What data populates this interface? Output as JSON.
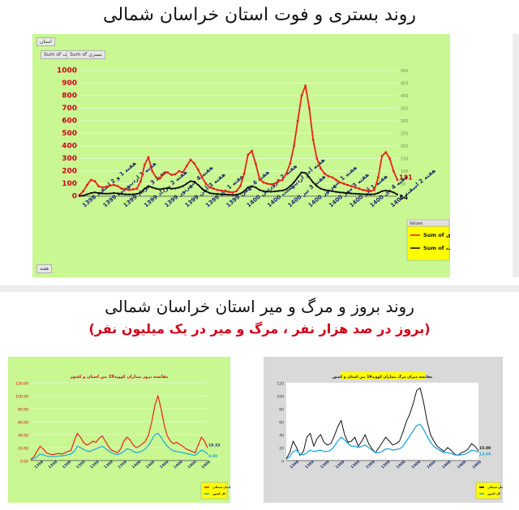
{
  "titles": {
    "top": "روند بستری و فوت استان خراسان شمالی",
    "bottom": "روند بروز و مرگ و میر استان خراسان شمالی",
    "bottom_sub": "(بروز در صد هزار نفر ، مرگ و میر در یک میلیون نفر)"
  },
  "pivot_buttons": {
    "filter": "استان",
    "sum_death": "Sum of فوت",
    "sum_hosp": "Sum of بستری",
    "week": "هفته",
    "values": "Values"
  },
  "colors": {
    "panel_green": "#c9f792",
    "panel_gray": "#d9d9d9",
    "hosp_red": "#e8231a",
    "death_black": "#111111",
    "legend_yellow": "#ffff00",
    "incidence_line": "#1f3b8c",
    "death_rate_line": "#1ea7e0"
  },
  "chart_data": [
    {
      "type": "line",
      "title": "",
      "ylabel": "",
      "ylim": [
        0,
        1000
      ],
      "y2lim": [
        0,
        500
      ],
      "yticks": [
        0,
        100,
        200,
        300,
        400,
        500,
        600,
        700,
        800,
        900,
        1000
      ],
      "y2ticks": [
        0,
        50,
        100,
        150,
        200,
        250,
        300,
        350,
        400,
        450,
        500
      ],
      "x_tick_labels": [
        "هفته 1 و 2 اسفند 1398",
        "هفته 1 اردیبهشت 1399",
        "هفته 3 خرداد 1399",
        "هفته 2 مرداد 1399",
        "هفته 4 شهریور 1399",
        "هفته 3 آبان 1399",
        "هفته 1 دی 1399",
        "هفته 4 بهمن 1399",
        "هفته 2 فروردین 1400",
        "هفته آخر اردیبهشت 1400",
        "هفته 3 تیر 1400",
        "هفته 1 شهریور 1400",
        "هفته 3 مهر 1400",
        "هفته 1 آذر 1400",
        "هفته 4 دی 1400",
        "هفته 2 اسفند 1400"
      ],
      "grid": true,
      "legend": "bottom-right",
      "end_labels": [
        "131",
        "14"
      ],
      "series": [
        {
          "name": "Sum of بستری",
          "values": [
            10,
            40,
            90,
            130,
            120,
            80,
            70,
            75,
            85,
            90,
            80,
            60,
            55,
            50,
            55,
            60,
            120,
            250,
            310,
            200,
            150,
            140,
            180,
            190,
            170,
            175,
            200,
            190,
            240,
            290,
            260,
            210,
            150,
            100,
            70,
            60,
            50,
            45,
            40,
            35,
            30,
            40,
            80,
            180,
            330,
            360,
            260,
            140,
            110,
            100,
            95,
            100,
            120,
            130,
            180,
            260,
            400,
            600,
            800,
            880,
            700,
            450,
            300,
            220,
            180,
            160,
            150,
            130,
            110,
            100,
            90,
            80,
            70,
            60,
            50,
            45,
            40,
            50,
            150,
            320,
            350,
            300,
            200,
            131
          ]
        },
        {
          "name": "Sum of فوت",
          "values": [
            2,
            5,
            15,
            25,
            30,
            25,
            22,
            20,
            22,
            25,
            22,
            18,
            15,
            14,
            15,
            18,
            30,
            60,
            80,
            70,
            60,
            55,
            60,
            65,
            60,
            62,
            70,
            80,
            100,
            120,
            115,
            90,
            60,
            40,
            25,
            20,
            18,
            15,
            14,
            12,
            10,
            12,
            20,
            40,
            70,
            80,
            70,
            50,
            40,
            38,
            36,
            38,
            42,
            45,
            55,
            80,
            110,
            150,
            190,
            185,
            150,
            110,
            80,
            60,
            50,
            45,
            40,
            35,
            30,
            28,
            25,
            22,
            20,
            18,
            16,
            15,
            14,
            16,
            25,
            40,
            45,
            40,
            30,
            14
          ]
        }
      ]
    },
    {
      "type": "line",
      "title": "مقایسه بروز بیماران کووید19 بین استان و کشور",
      "ylim": [
        0,
        120
      ],
      "yticks": [
        "0.00",
        "20.00",
        "40.00",
        "60.00",
        "80.00",
        "100.00",
        "120.00"
      ],
      "x_tick_labels": [
        "1398",
        "1399",
        "1399",
        "1399",
        "1399",
        "1399",
        "1399",
        "1400",
        "1400",
        "1400",
        "1400",
        "1400",
        "1400"
      ],
      "legend": "bottom-right",
      "end_labels": [
        "19.33",
        "9.98"
      ],
      "series": [
        {
          "name": "خراسان شمالی",
          "values": [
            2,
            6,
            14,
            22,
            18,
            12,
            10,
            9,
            10,
            11,
            10,
            12,
            14,
            16,
            30,
            42,
            36,
            28,
            24,
            26,
            30,
            28,
            34,
            38,
            30,
            22,
            16,
            14,
            12,
            18,
            30,
            36,
            32,
            24,
            20,
            22,
            26,
            30,
            40,
            60,
            85,
            100,
            80,
            55,
            38,
            30,
            26,
            28,
            25,
            22,
            18,
            16,
            14,
            12,
            24,
            36,
            30,
            19.33
          ]
        },
        {
          "name": "کل کشور",
          "values": [
            1,
            3,
            6,
            10,
            9,
            7,
            6,
            6,
            6,
            7,
            7,
            8,
            9,
            10,
            14,
            22,
            20,
            17,
            15,
            14,
            16,
            18,
            20,
            22,
            19,
            15,
            12,
            10,
            9,
            11,
            14,
            18,
            17,
            14,
            12,
            13,
            15,
            18,
            24,
            32,
            40,
            42,
            36,
            28,
            22,
            18,
            15,
            14,
            13,
            12,
            11,
            10,
            9,
            8,
            12,
            16,
            14,
            9.98
          ]
        }
      ]
    },
    {
      "type": "line",
      "title": "مقایسه میزان مرگ بیماران کووید19 بین استان و کشور",
      "ylim": [
        0,
        120
      ],
      "yticks": [
        "0",
        "20",
        "40",
        "60",
        "80",
        "100",
        "120"
      ],
      "x_tick_labels": [
        "1398",
        "1399",
        "1399",
        "1399",
        "1399",
        "1399",
        "1399",
        "1400",
        "1400",
        "1400",
        "1400",
        "1400",
        "1400"
      ],
      "legend": "bottom-right",
      "end_labels": [
        "15.00",
        "13.00"
      ],
      "series": [
        {
          "name": "خراسان شمالی",
          "values": [
            3,
            12,
            30,
            20,
            8,
            14,
            36,
            42,
            22,
            34,
            40,
            28,
            24,
            26,
            38,
            52,
            62,
            40,
            28,
            30,
            36,
            22,
            30,
            40,
            26,
            18,
            12,
            20,
            28,
            36,
            30,
            24,
            26,
            30,
            44,
            60,
            72,
            88,
            108,
            112,
            90,
            62,
            40,
            30,
            22,
            18,
            14,
            20,
            16,
            10,
            8,
            12,
            14,
            18,
            26,
            22,
            15
          ]
        },
        {
          "name": "کل کشور",
          "values": [
            2,
            6,
            14,
            16,
            10,
            9,
            12,
            16,
            14,
            15,
            16,
            14,
            14,
            16,
            22,
            30,
            36,
            32,
            26,
            22,
            22,
            20,
            22,
            24,
            20,
            16,
            12,
            12,
            14,
            18,
            18,
            16,
            17,
            18,
            22,
            30,
            38,
            46,
            54,
            56,
            48,
            38,
            28,
            22,
            18,
            15,
            12,
            12,
            11,
            9,
            8,
            9,
            10,
            12,
            16,
            15,
            13
          ]
        }
      ]
    }
  ]
}
